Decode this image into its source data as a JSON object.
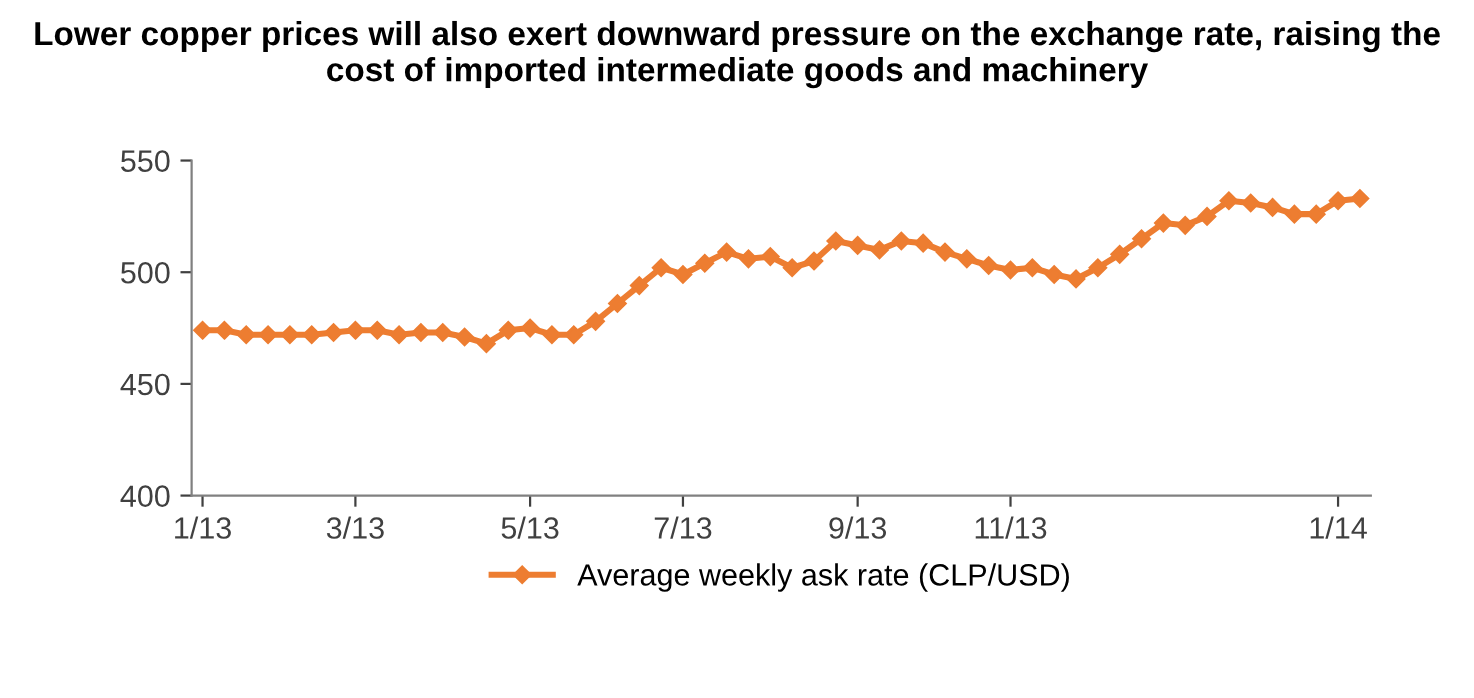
{
  "chart_data": {
    "type": "line",
    "title": "Lower copper prices will also exert downward pressure on the exchange rate, raising the cost of imported intermediate goods and machinery",
    "categories": [
      "1/13",
      null,
      null,
      null,
      null,
      null,
      null,
      "3/13",
      null,
      null,
      null,
      null,
      null,
      null,
      null,
      "5/13",
      null,
      null,
      null,
      null,
      null,
      null,
      "7/13",
      null,
      null,
      null,
      null,
      null,
      null,
      null,
      "9/13",
      null,
      null,
      null,
      null,
      null,
      null,
      "11/13",
      null,
      null,
      null,
      null,
      null,
      null,
      null,
      null,
      null,
      null,
      null,
      null,
      null,
      null,
      "1/14",
      null
    ],
    "series": [
      {
        "name": "Average weekly ask rate (CLP/USD)",
        "color": "#ed7d31",
        "values": [
          474,
          474,
          472,
          472,
          472,
          472,
          473,
          474,
          474,
          472,
          473,
          473,
          471,
          468,
          474,
          475,
          472,
          472,
          478,
          486,
          494,
          502,
          499,
          504,
          509,
          506,
          507,
          502,
          505,
          514,
          512,
          510,
          514,
          513,
          509,
          506,
          503,
          501,
          502,
          499,
          497,
          502,
          508,
          515,
          522,
          521,
          525,
          532,
          531,
          529,
          526,
          526,
          532,
          533
        ]
      }
    ],
    "ylim": [
      400,
      550
    ],
    "yticks": [
      400,
      450,
      500,
      550
    ],
    "legend": "bottom",
    "marker": "diamond",
    "line_style": "solid",
    "grid": false
  }
}
